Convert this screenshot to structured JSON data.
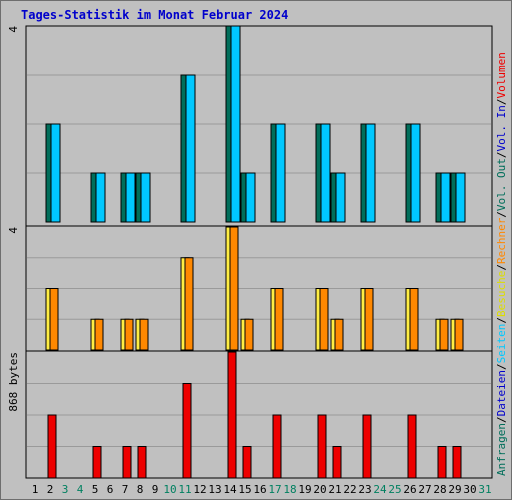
{
  "title": "Tages-Statistik im Monat Februar 2024",
  "colors": {
    "background": "#c0c0c0",
    "grid": "#9a9a9a",
    "title": "#0000cc",
    "weekday_label": "#000000",
    "weekend_label": "#008060",
    "anfragen": "#006e5a",
    "dateien": "#00c8ff",
    "besuche": "#ffee44",
    "rechner": "#ff8800",
    "volumen": "#ee0000"
  },
  "panel_max_labels": {
    "requests": "4",
    "visits": "4",
    "volume": "868 bytes"
  },
  "legend": {
    "requests": [
      {
        "text": "Anfragen",
        "color": "#006e5a"
      },
      {
        "text": "/",
        "color": "#000000"
      },
      {
        "text": "Dateien",
        "color": "#0000cc"
      },
      {
        "text": "/",
        "color": "#000000"
      },
      {
        "text": "Seiten",
        "color": "#00c8ff"
      },
      {
        "text": "/",
        "color": "#000000"
      },
      {
        "text": "Besuche",
        "color": "#dddd00"
      },
      {
        "text": "/",
        "color": "#000000"
      },
      {
        "text": "Rechner",
        "color": "#ff8800"
      },
      {
        "text": "/",
        "color": "#000000"
      },
      {
        "text": "Vol. Out",
        "color": "#006e5a"
      },
      {
        "text": "/",
        "color": "#000000"
      },
      {
        "text": "Vol. In",
        "color": "#0000cc"
      },
      {
        "text": "/",
        "color": "#000000"
      },
      {
        "text": "Volumen",
        "color": "#ee0000"
      }
    ]
  },
  "chart_data": {
    "type": "bar",
    "title": "Tages-Statistik im Monat Februar 2024",
    "categories": [
      "1",
      "2",
      "3",
      "4",
      "5",
      "6",
      "7",
      "8",
      "9",
      "10",
      "11",
      "12",
      "13",
      "14",
      "15",
      "16",
      "17",
      "18",
      "19",
      "20",
      "21",
      "22",
      "23",
      "24",
      "25",
      "26",
      "27",
      "28",
      "29",
      "30",
      "31"
    ],
    "weekend_days": [
      "3",
      "4",
      "10",
      "11",
      "17",
      "18",
      "24",
      "25",
      "31"
    ],
    "panels": [
      {
        "name": "requests",
        "ylim": [
          0,
          4
        ],
        "series": [
          {
            "name": "Anfragen",
            "values": [
              0,
              2,
              0,
              0,
              1,
              0,
              1,
              1,
              0,
              0,
              3,
              0,
              0,
              4,
              1,
              0,
              2,
              0,
              0,
              2,
              1,
              0,
              2,
              0,
              0,
              2,
              0,
              1,
              1,
              0,
              0
            ]
          },
          {
            "name": "Dateien",
            "values": [
              0,
              2,
              0,
              0,
              1,
              0,
              1,
              1,
              0,
              0,
              3,
              0,
              0,
              4,
              1,
              0,
              2,
              0,
              0,
              2,
              1,
              0,
              2,
              0,
              0,
              2,
              0,
              1,
              1,
              0,
              0
            ]
          }
        ]
      },
      {
        "name": "visits",
        "ylim": [
          0,
          4
        ],
        "series": [
          {
            "name": "Besuche",
            "values": [
              0,
              2,
              0,
              0,
              1,
              0,
              1,
              1,
              0,
              0,
              3,
              0,
              0,
              4,
              1,
              0,
              2,
              0,
              0,
              2,
              1,
              0,
              2,
              0,
              0,
              2,
              0,
              1,
              1,
              0,
              0
            ]
          },
          {
            "name": "Rechner",
            "values": [
              0,
              2,
              0,
              0,
              1,
              0,
              1,
              1,
              0,
              0,
              3,
              0,
              0,
              4,
              1,
              0,
              2,
              0,
              0,
              2,
              1,
              0,
              2,
              0,
              0,
              2,
              0,
              1,
              1,
              0,
              0
            ]
          }
        ]
      },
      {
        "name": "volume",
        "ylim": [
          0,
          868
        ],
        "series": [
          {
            "name": "Volumen",
            "values": [
              0,
              434,
              0,
              0,
              217,
              0,
              217,
              217,
              0,
              0,
              651,
              0,
              0,
              868,
              217,
              0,
              434,
              0,
              0,
              434,
              217,
              0,
              434,
              0,
              0,
              434,
              0,
              217,
              217,
              0,
              0
            ]
          }
        ]
      }
    ],
    "grid": true
  }
}
